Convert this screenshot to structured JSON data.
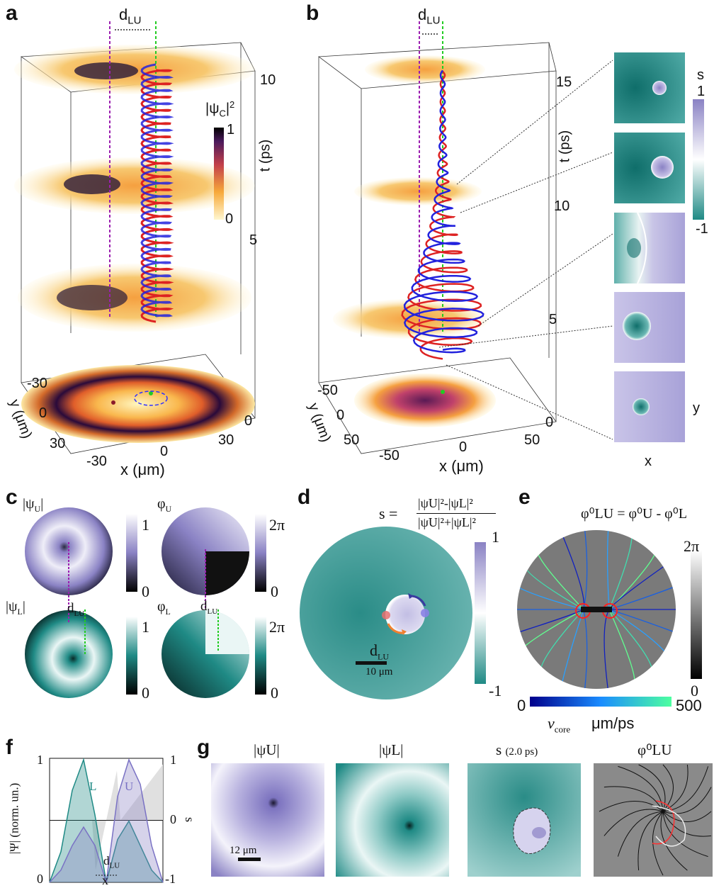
{
  "panels": {
    "a": {
      "label": "a",
      "d_label": "d",
      "d_sub": "LU",
      "colorbar_title": "|ψ",
      "colorbar_title_sub": "C",
      "colorbar_title_sup": "2",
      "colorbar_title_end": "|",
      "cb_max": "1",
      "cb_min": "0",
      "t_axis": "t (ps)",
      "t_ticks": [
        "10",
        "5",
        "0"
      ],
      "y_axis": "y (μm)",
      "y_ticks": [
        "-30",
        "0",
        "30"
      ],
      "x_axis": "x (μm)",
      "x_ticks": [
        "-30",
        "0",
        "30"
      ]
    },
    "b": {
      "label": "b",
      "d_label": "d",
      "d_sub": "LU",
      "t_axis": "t (ps)",
      "t_ticks": [
        "15",
        "10",
        "5",
        "0"
      ],
      "y_axis": "y (μm)",
      "y_ticks": [
        "-50",
        "0",
        "50"
      ],
      "x_axis": "x (μm)",
      "x_ticks": [
        "-50",
        "0",
        "50"
      ],
      "s_label": "s",
      "s_max": "1",
      "s_min": "-1",
      "inset_x": "x",
      "inset_y": "y"
    },
    "c": {
      "label": "c",
      "psi_u": "|ψ",
      "psi_u_sub": "U",
      "phi_u": "φ",
      "phi_u_sub": "U",
      "psi_l": "|ψ",
      "psi_l_sub": "L",
      "phi_l": "φ",
      "phi_l_sub": "L",
      "bar_end": "|",
      "one": "1",
      "zero": "0",
      "two_pi": "2π",
      "d_label": "d",
      "d_sub": "LU"
    },
    "d": {
      "label": "d",
      "formula_lhs": "s =",
      "numerator": "|ψU|²-|ψL|²",
      "denominator": "|ψU|²+|ψL|²",
      "d_label": "d",
      "d_sub": "LU",
      "scale": "10 μm",
      "cb_max": "1",
      "cb_min": "-1"
    },
    "e": {
      "label": "e",
      "formula": "φ⁰LU = φ⁰U - φ⁰L",
      "cb_max": "2π",
      "cb_min": "0",
      "v_min": "0",
      "v_max": "500",
      "v_label": "v",
      "v_sub": "core",
      "v_unit": "μm/ps"
    },
    "f": {
      "label": "f",
      "ylabel": "|Ψ| (norm. un.)",
      "ylabel_right": "s",
      "xlabel": "x",
      "left_ticks": [
        "1",
        "0"
      ],
      "right_ticks": [
        "1",
        "0",
        "-1"
      ],
      "curve_L": "L",
      "curve_U": "U",
      "d_label": "d",
      "d_sub": "LU"
    },
    "g": {
      "label": "g",
      "titles": [
        "|ψU|",
        "|ψL|",
        "s",
        "φ⁰LU"
      ],
      "s_time": "(2.0 ps)",
      "scale": "12 μm"
    }
  },
  "chart_data": [
    {
      "type": "line",
      "title": "",
      "xlabel": "x",
      "ylabel": "|Ψ| (norm. un.)",
      "ylim": [
        0,
        1
      ],
      "series": [
        {
          "name": "L",
          "x": [
            0,
            0.1,
            0.2,
            0.3,
            0.4,
            0.5,
            0.6,
            0.7,
            0.8,
            0.9,
            1.0
          ],
          "values": [
            0,
            0.25,
            0.75,
            1.0,
            0.55,
            0,
            0.35,
            0.5,
            0.3,
            0.1,
            0
          ]
        },
        {
          "name": "U",
          "x": [
            0,
            0.1,
            0.2,
            0.3,
            0.4,
            0.5,
            0.6,
            0.7,
            0.8,
            0.9,
            1.0
          ],
          "values": [
            0,
            0.1,
            0.3,
            0.45,
            0.3,
            0,
            0.7,
            1.0,
            0.8,
            0.3,
            0
          ]
        }
      ],
      "right_axis": {
        "label": "s",
        "ylim": [
          -1,
          1
        ]
      }
    }
  ],
  "colors": {
    "purple": "#8a82c4",
    "teal": "#1f8a85",
    "red": "#e41a1c",
    "blue": "#1a1aff",
    "green": "#22cc22",
    "magenta": "#9b1fb0"
  }
}
